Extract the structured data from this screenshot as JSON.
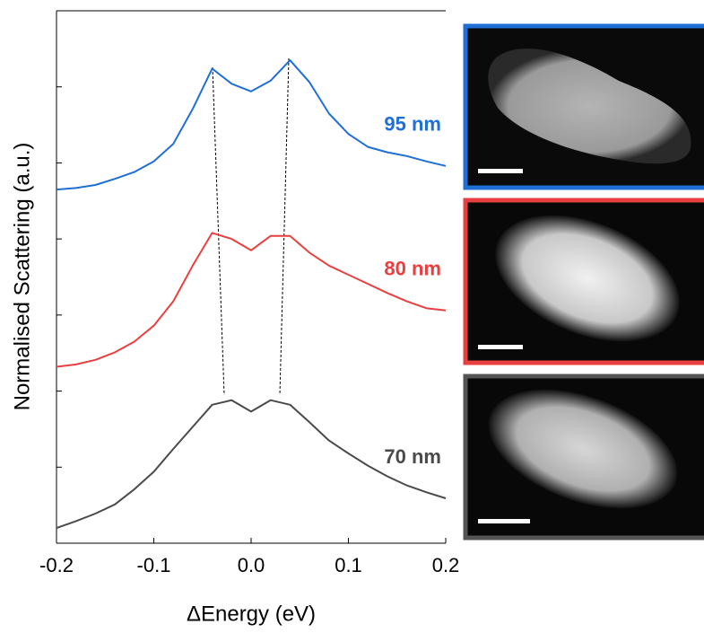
{
  "chart_data": {
    "type": "line",
    "x_label": "ΔEnergy (eV)",
    "y_label": "Normalised Scattering (a.u.)",
    "x": [
      -0.2,
      -0.18,
      -0.16,
      -0.14,
      -0.12,
      -0.1,
      -0.08,
      -0.06,
      -0.04,
      -0.02,
      0,
      0.02,
      0.04,
      0.06,
      0.08,
      0.1,
      0.12,
      0.14,
      0.16,
      0.18,
      0.2
    ],
    "series": [
      {
        "name": "95 nm",
        "color": "#1f6fd6",
        "values": [
          4.65,
          4.67,
          4.71,
          4.79,
          4.88,
          5.02,
          5.25,
          5.71,
          6.24,
          6.04,
          5.94,
          6.08,
          6.35,
          6.06,
          5.65,
          5.38,
          5.21,
          5.14,
          5.09,
          5.02,
          4.96
        ]
      },
      {
        "name": "80 nm",
        "color": "#e84040",
        "values": [
          2.32,
          2.35,
          2.41,
          2.51,
          2.65,
          2.86,
          3.18,
          3.65,
          4.08,
          4.0,
          3.85,
          4.04,
          4.04,
          3.82,
          3.65,
          3.53,
          3.41,
          3.29,
          3.18,
          3.09,
          3.06
        ]
      },
      {
        "name": "70 nm",
        "color": "#4a4a4a",
        "values": [
          0.2,
          0.29,
          0.39,
          0.51,
          0.71,
          0.94,
          1.24,
          1.53,
          1.82,
          1.88,
          1.73,
          1.88,
          1.82,
          1.59,
          1.35,
          1.18,
          1.02,
          0.88,
          0.76,
          0.67,
          0.59
        ]
      }
    ],
    "xlim": [
      -0.2,
      0.2
    ],
    "xticks": [
      -0.2,
      -0.1,
      {
        "value": 0,
        "label": "0.0"
      },
      0.1,
      0.2
    ],
    "ylim": [
      0,
      7
    ],
    "yticks": [
      1,
      2,
      3,
      4,
      5,
      6
    ]
  }
}
